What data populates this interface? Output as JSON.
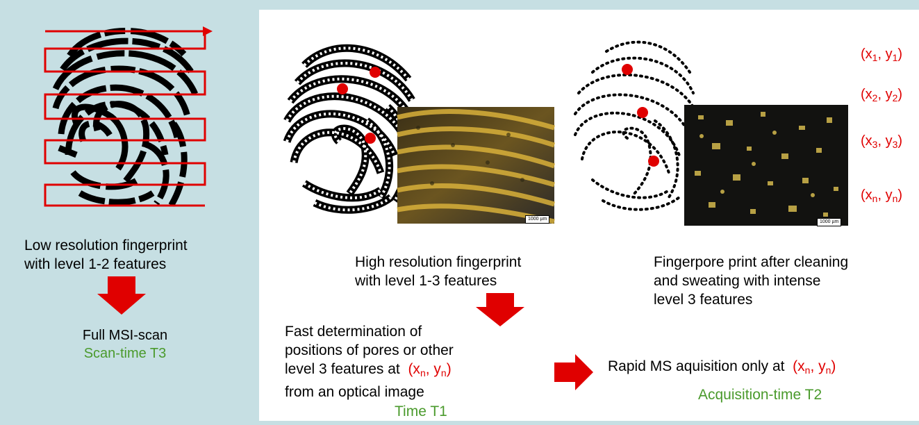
{
  "left": {
    "caption": [
      "Low resolution fingerprint",
      "with level 1-2 features"
    ],
    "scan_title": "Full MSI-scan",
    "scan_time": "Scan-time T3"
  },
  "middle": {
    "caption": [
      "High resolution fingerprint",
      "with level 1-3 features"
    ],
    "scale_label": "1000 µm",
    "fast_lines": [
      "Fast determination of",
      "positions of pores or other",
      "level 3 features at",
      "from an optical image"
    ],
    "coord_xn": "(x",
    "coord_n": "n",
    "coord_mid": ", y",
    "coord_end": ")",
    "time": "Time T1"
  },
  "right": {
    "caption": [
      "Fingerpore print after cleaning",
      "and sweating with intense",
      "level 3 features"
    ],
    "scale_label": "1000 µm",
    "rapid": "Rapid MS aquisition only at",
    "acq_time": "Acquisition-time T2"
  },
  "coords": [
    {
      "x": "(x",
      "sub": "1",
      "mid": ", y",
      "end": ")"
    },
    {
      "x": "(x",
      "sub": "2",
      "mid": ", y",
      "end": ")"
    },
    {
      "x": "(x",
      "sub": "3",
      "mid": ", y",
      "end": ")"
    },
    {
      "x": "(x",
      "sub": "n",
      "mid": ", y",
      "end": ")"
    }
  ],
  "colors": {
    "panel_bg": "#c6dfe3",
    "red": "#e00000",
    "green": "#4a9a2c"
  }
}
